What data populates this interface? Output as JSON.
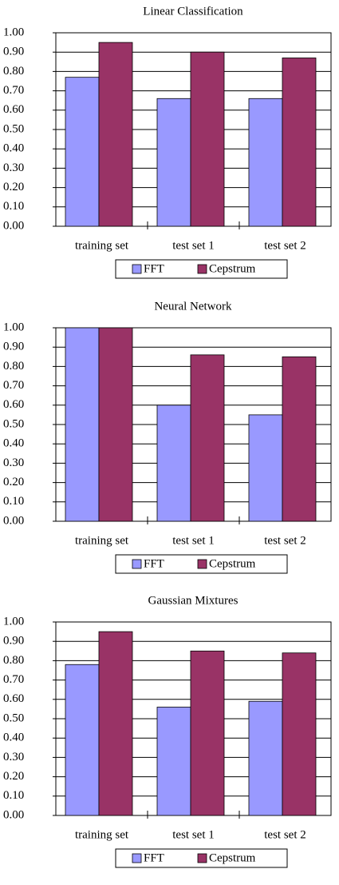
{
  "chart_data": [
    {
      "type": "bar",
      "title": "Linear Classification",
      "categories": [
        "training set",
        "test set 1",
        "test set 2"
      ],
      "series": [
        {
          "name": "FFT",
          "color": "#9999ff",
          "values": [
            0.77,
            0.66,
            0.66
          ]
        },
        {
          "name": "Cepstrum",
          "color": "#993366",
          "values": [
            0.95,
            0.9,
            0.87
          ]
        }
      ],
      "ylim": [
        0,
        1
      ],
      "yticks": [
        {
          "value": 0,
          "label": "0.00"
        },
        {
          "value": 0.1,
          "label": "0.10"
        },
        {
          "value": 0.2,
          "label": "0.20"
        },
        {
          "value": 0.3,
          "label": "0.30"
        },
        {
          "value": 0.4,
          "label": "0.40"
        },
        {
          "value": 0.5,
          "label": "0.50"
        },
        {
          "value": 0.6,
          "label": "0.60"
        },
        {
          "value": 0.7,
          "label": "0.70"
        },
        {
          "value": 0.8,
          "label": "0.80"
        },
        {
          "value": 0.9,
          "label": "0.90"
        },
        {
          "value": 1,
          "label": "1.00"
        }
      ],
      "grid": true,
      "legend": "bottom"
    },
    {
      "type": "bar",
      "title": "Neural Network",
      "categories": [
        "training set",
        "test set 1",
        "test set 2"
      ],
      "series": [
        {
          "name": "FFT",
          "color": "#9999ff",
          "values": [
            1.0,
            0.6,
            0.55
          ]
        },
        {
          "name": "Cepstrum",
          "color": "#993366",
          "values": [
            1.0,
            0.86,
            0.85
          ]
        }
      ],
      "ylim": [
        0,
        1
      ],
      "yticks": [
        {
          "value": 0,
          "label": "0.00"
        },
        {
          "value": 0.1,
          "label": "0.10"
        },
        {
          "value": 0.2,
          "label": "0.20"
        },
        {
          "value": 0.3,
          "label": "0.30"
        },
        {
          "value": 0.4,
          "label": "0.40"
        },
        {
          "value": 0.5,
          "label": "0.50"
        },
        {
          "value": 0.6,
          "label": "0.60"
        },
        {
          "value": 0.7,
          "label": "0.70"
        },
        {
          "value": 0.8,
          "label": "0.80"
        },
        {
          "value": 0.9,
          "label": "0.90"
        },
        {
          "value": 1,
          "label": "1.00"
        }
      ],
      "grid": true,
      "legend": "bottom"
    },
    {
      "type": "bar",
      "title": "Gaussian Mixtures",
      "categories": [
        "training set",
        "test set 1",
        "test set 2"
      ],
      "series": [
        {
          "name": "FFT",
          "color": "#9999ff",
          "values": [
            0.78,
            0.56,
            0.59
          ]
        },
        {
          "name": "Cepstrum",
          "color": "#993366",
          "values": [
            0.95,
            0.85,
            0.84
          ]
        }
      ],
      "ylim": [
        0,
        1
      ],
      "yticks": [
        {
          "value": 0,
          "label": "0.00"
        },
        {
          "value": 0.1,
          "label": "0.10"
        },
        {
          "value": 0.2,
          "label": "0.20"
        },
        {
          "value": 0.3,
          "label": "0.30"
        },
        {
          "value": 0.4,
          "label": "0.40"
        },
        {
          "value": 0.5,
          "label": "0.50"
        },
        {
          "value": 0.6,
          "label": "0.60"
        },
        {
          "value": 0.7,
          "label": "0.70"
        },
        {
          "value": 0.8,
          "label": "0.80"
        },
        {
          "value": 0.9,
          "label": "0.90"
        },
        {
          "value": 1,
          "label": "1.00"
        }
      ],
      "grid": true,
      "legend": "bottom"
    }
  ]
}
